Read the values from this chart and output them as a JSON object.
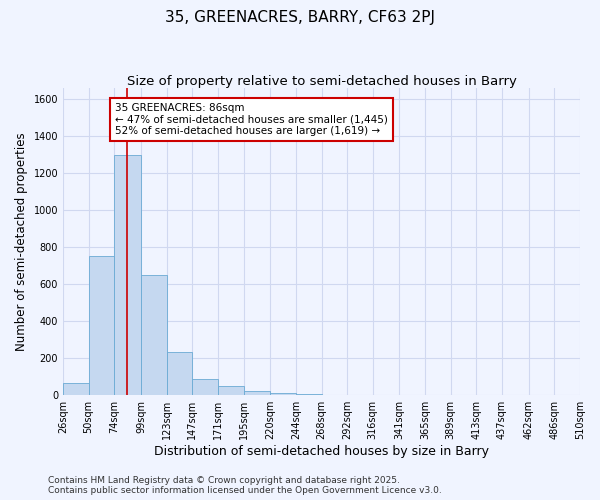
{
  "title": "35, GREENACRES, BARRY, CF63 2PJ",
  "subtitle": "Size of property relative to semi-detached houses in Barry",
  "xlabel": "Distribution of semi-detached houses by size in Barry",
  "ylabel": "Number of semi-detached properties",
  "bar_color": "#c5d8f0",
  "bar_edge_color": "#6aaad4",
  "background_color": "#f0f4ff",
  "grid_color": "#d0d8f0",
  "red_line_x": 86,
  "annotation_title": "35 GREENACRES: 86sqm",
  "annotation_line1": "← 47% of semi-detached houses are smaller (1,445)",
  "annotation_line2": "52% of semi-detached houses are larger (1,619) →",
  "bin_edges": [
    26,
    50,
    74,
    99,
    123,
    147,
    171,
    195,
    220,
    244,
    268,
    292,
    316,
    341,
    365,
    389,
    413,
    437,
    462,
    486,
    510
  ],
  "bin_labels": [
    "26sqm",
    "50sqm",
    "74sqm",
    "99sqm",
    "123sqm",
    "147sqm",
    "171sqm",
    "195sqm",
    "220sqm",
    "244sqm",
    "268sqm",
    "292sqm",
    "316sqm",
    "341sqm",
    "365sqm",
    "389sqm",
    "413sqm",
    "437sqm",
    "462sqm",
    "486sqm",
    "510sqm"
  ],
  "counts": [
    65,
    750,
    1295,
    650,
    230,
    85,
    45,
    20,
    8,
    2,
    1,
    0,
    0,
    0,
    0,
    0,
    0,
    0,
    0,
    0
  ],
  "ylim": [
    0,
    1660
  ],
  "yticks": [
    0,
    200,
    400,
    600,
    800,
    1000,
    1200,
    1400,
    1600
  ],
  "footer_line1": "Contains HM Land Registry data © Crown copyright and database right 2025.",
  "footer_line2": "Contains public sector information licensed under the Open Government Licence v3.0.",
  "annotation_box_color": "#ffffff",
  "annotation_box_edge": "#cc0000",
  "red_line_color": "#cc0000",
  "title_fontsize": 11,
  "subtitle_fontsize": 9.5,
  "axis_label_fontsize": 8.5,
  "tick_fontsize": 7,
  "annotation_fontsize": 7.5,
  "footer_fontsize": 6.5
}
